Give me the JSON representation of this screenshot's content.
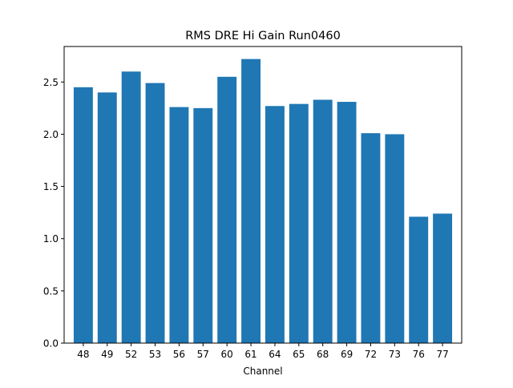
{
  "chart_data": {
    "type": "bar",
    "title": "RMS DRE Hi Gain Run0460",
    "xlabel": "Channel",
    "ylabel": "",
    "categories": [
      "48",
      "49",
      "52",
      "53",
      "56",
      "57",
      "60",
      "61",
      "64",
      "65",
      "68",
      "69",
      "72",
      "73",
      "76",
      "77"
    ],
    "values": [
      2.45,
      2.4,
      2.6,
      2.49,
      2.26,
      2.25,
      2.55,
      2.72,
      2.27,
      2.29,
      2.33,
      2.31,
      2.01,
      2.0,
      1.21,
      1.24
    ],
    "ylim": [
      0,
      2.84
    ],
    "yticks": [
      0.0,
      0.5,
      1.0,
      1.5,
      2.0,
      2.5
    ],
    "ytick_labels": [
      "0.0",
      "0.5",
      "1.0",
      "1.5",
      "2.0",
      "2.5"
    ],
    "grid": false,
    "bar_color": "#1f77b4"
  }
}
